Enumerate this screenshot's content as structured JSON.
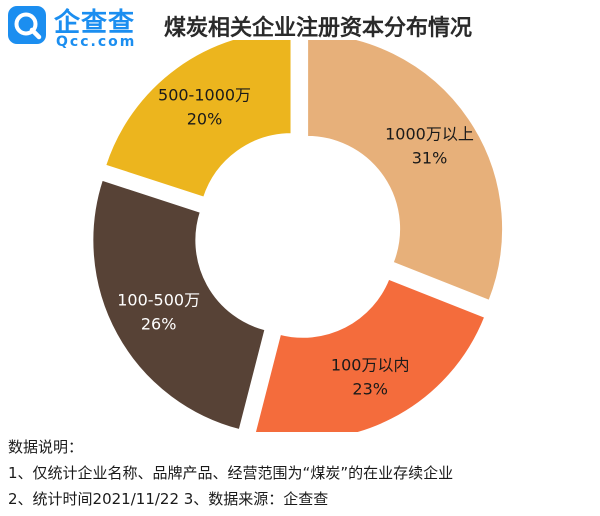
{
  "brand": {
    "name": "企查查",
    "domain": "Qcc.com",
    "logo_icon": "magnifier-q-icon",
    "color": "#1b8ef0"
  },
  "chart_data": {
    "type": "pie",
    "style": "exploded-donut",
    "title": "煤炭相关企业注册资本分布情况",
    "slices": [
      {
        "label": "1000万以上",
        "value": 31,
        "value_label": "31%",
        "color": "#e7b07a"
      },
      {
        "label": "100万以内",
        "value": 23,
        "value_label": "23%",
        "color": "#f46c3c"
      },
      {
        "label": "100-500万",
        "value": 26,
        "value_label": "26%",
        "color": "#574236"
      },
      {
        "label": "500-1000万",
        "value": 20,
        "value_label": "20%",
        "color": "#ecb51e"
      }
    ]
  },
  "notes": {
    "heading": "数据说明：",
    "lines": [
      "1、仅统计企业名称、品牌产品、经营范围为“煤炭”的在业存续企业",
      "2、统计时间2021/11/22   3、数据来源：企查查"
    ]
  }
}
